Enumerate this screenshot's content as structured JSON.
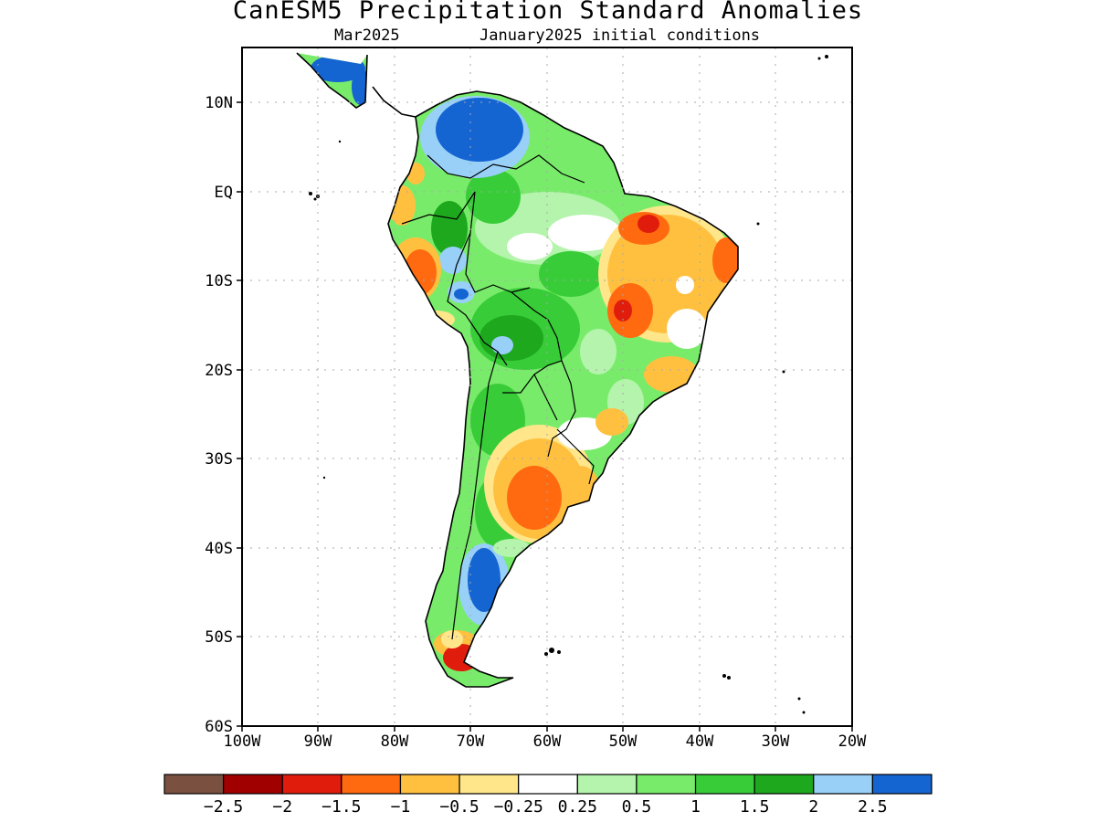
{
  "header": {
    "title": "CanESM5 Precipitation Standard Anomalies",
    "valid_month": "Mar2025",
    "init_conditions": "January2025 initial conditions"
  },
  "axes": {
    "lat_labels": [
      "10N",
      "EQ",
      "10S",
      "20S",
      "30S",
      "40S",
      "50S",
      "60S"
    ],
    "lon_labels": [
      "100W",
      "90W",
      "80W",
      "70W",
      "60W",
      "50W",
      "40W",
      "30W",
      "20W"
    ]
  },
  "colorbar": {
    "colors": [
      "#7a5040",
      "#a00000",
      "#e01c0c",
      "#ff6a10",
      "#ffc040",
      "#ffe68a",
      "#ffffff",
      "#b4f4ac",
      "#78ec6a",
      "#38cc38",
      "#1ea81e",
      "#98d0f8",
      "#1464d2"
    ],
    "labels": [
      "−2.5",
      "−2",
      "−1.5",
      "−1",
      "−0.5",
      "−0.25",
      "0.25",
      "0.5",
      "1",
      "1.5",
      "2",
      "2.5"
    ]
  },
  "map_colors": {
    "coast": "#000000",
    "grid": "#b0b0b0"
  }
}
